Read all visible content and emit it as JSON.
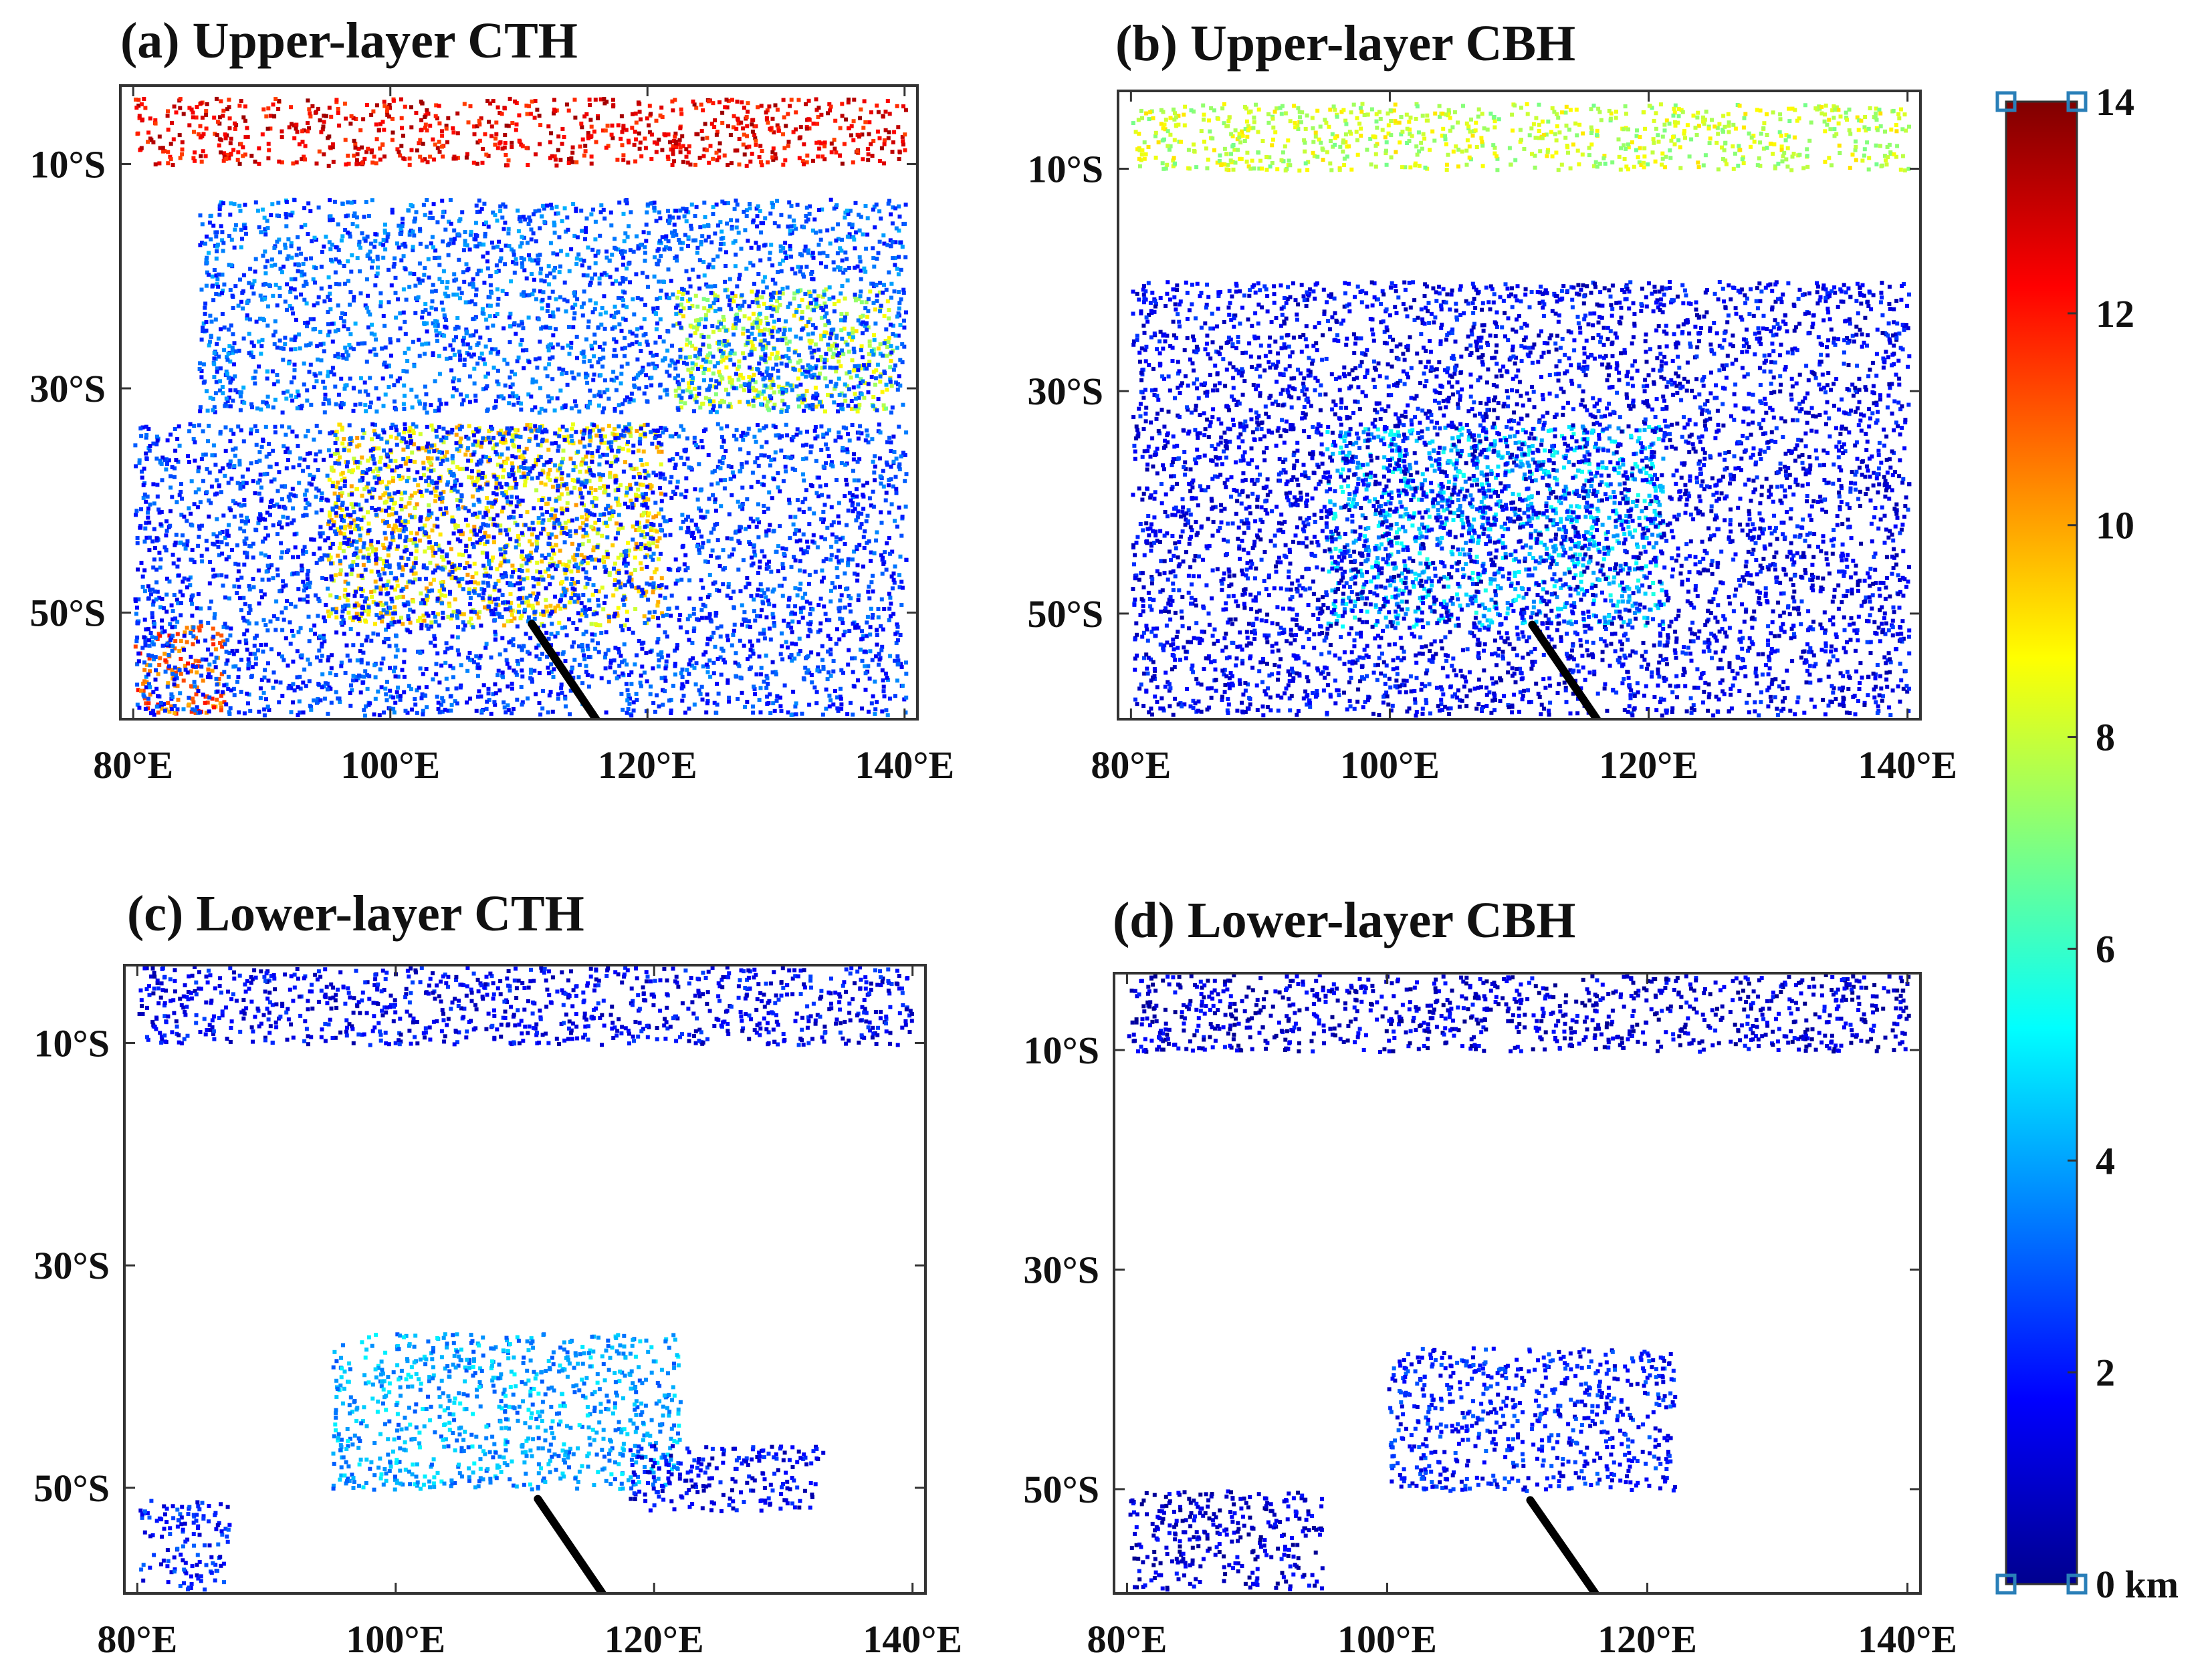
{
  "figure": {
    "panels": [
      {
        "id": "a",
        "title": "(a) Upper-layer CTH"
      },
      {
        "id": "b",
        "title": "(b) Upper-layer CBH"
      },
      {
        "id": "c",
        "title": "(c) Lower-layer CTH"
      },
      {
        "id": "d",
        "title": "(d) Lower-layer CBH"
      }
    ],
    "colorbar": {
      "unit": "km",
      "ticks": [
        "0 km",
        "2",
        "4",
        "6",
        "8",
        "10",
        "12",
        "14"
      ],
      "range": [
        0,
        14
      ],
      "colormap": "jet",
      "colors": [
        "#00008f",
        "#0000ff",
        "#00ffff",
        "#ffff00",
        "#ff0000",
        "#800000"
      ]
    }
  },
  "chart_data": [
    {
      "type": "heatmap",
      "title": "(a) Upper-layer CTH",
      "x_ticks": [
        "80°E",
        "100°E",
        "120°E",
        "140°E"
      ],
      "x_tick_values": [
        80,
        100,
        120,
        140
      ],
      "y_ticks": [
        "10°S",
        "30°S",
        "50°S"
      ],
      "y_tick_values": [
        -10,
        -30,
        -50
      ],
      "xlim": [
        79,
        141
      ],
      "ylim": [
        -59.5,
        -3
      ],
      "track": {
        "lon": [
          111,
          116
        ],
        "lat": [
          -51,
          -59.5
        ]
      },
      "regions": [
        {
          "lon": [
            80,
            140
          ],
          "lat": [
            -4,
            -10
          ],
          "value": 12.5
        },
        {
          "lon": [
            80,
            87
          ],
          "lat": [
            -51,
            -59
          ],
          "value": 11
        },
        {
          "lon": [
            95,
            121
          ],
          "lat": [
            -33,
            -51
          ],
          "value": 9
        },
        {
          "lon": [
            122,
            139
          ],
          "lat": [
            -21,
            -32
          ],
          "value": 8
        },
        {
          "lon": [
            80,
            140
          ],
          "lat": [
            -33,
            -59
          ],
          "value": 2.5
        },
        {
          "lon": [
            85,
            140
          ],
          "lat": [
            -13,
            -32
          ],
          "value": 3
        }
      ],
      "grid": false,
      "legend_position": "right"
    },
    {
      "type": "heatmap",
      "title": "(b) Upper-layer CBH",
      "x_ticks": [
        "80°E",
        "100°E",
        "120°E",
        "140°E"
      ],
      "x_tick_values": [
        80,
        100,
        120,
        140
      ],
      "y_ticks": [
        "10°S",
        "30°S",
        "50°S"
      ],
      "y_tick_values": [
        -10,
        -30,
        -50
      ],
      "xlim": [
        79,
        141
      ],
      "ylim": [
        -59.5,
        -3
      ],
      "track": {
        "lon": [
          111,
          116
        ],
        "lat": [
          -51,
          -59.5
        ]
      },
      "regions": [
        {
          "lon": [
            80,
            140
          ],
          "lat": [
            -4,
            -10
          ],
          "value": 8
        },
        {
          "lon": [
            95,
            121
          ],
          "lat": [
            -33,
            -51
          ],
          "value": 4.5
        },
        {
          "lon": [
            80,
            140
          ],
          "lat": [
            -20,
            -59
          ],
          "value": 1.5
        }
      ],
      "grid": false,
      "legend_position": "right"
    },
    {
      "type": "heatmap",
      "title": "(c) Lower-layer CTH",
      "x_ticks": [
        "80°E",
        "100°E",
        "120°E",
        "140°E"
      ],
      "x_tick_values": [
        80,
        100,
        120,
        140
      ],
      "y_ticks": [
        "10°S",
        "30°S",
        "50°S"
      ],
      "y_tick_values": [
        -10,
        -30,
        -50
      ],
      "xlim": [
        79,
        141
      ],
      "ylim": [
        -59.5,
        -3
      ],
      "track": {
        "lon": [
          111,
          116
        ],
        "lat": [
          -51,
          -59.5
        ]
      },
      "regions": [
        {
          "lon": [
            80,
            140
          ],
          "lat": [
            -3,
            -10
          ],
          "value": 1.5
        },
        {
          "lon": [
            95,
            122
          ],
          "lat": [
            -36,
            -50
          ],
          "value": 4
        },
        {
          "lon": [
            118,
            133
          ],
          "lat": [
            -46,
            -52
          ],
          "value": 1.5
        },
        {
          "lon": [
            80,
            87
          ],
          "lat": [
            -51,
            -59
          ],
          "value": 2
        }
      ],
      "grid": false,
      "legend_position": "right"
    },
    {
      "type": "heatmap",
      "title": "(d) Lower-layer CBH",
      "x_ticks": [
        "80°E",
        "100°E",
        "120°E",
        "140°E"
      ],
      "x_tick_values": [
        80,
        100,
        120,
        140
      ],
      "y_ticks": [
        "10°S",
        "30°S",
        "50°S"
      ],
      "y_tick_values": [
        -10,
        -30,
        -50
      ],
      "xlim": [
        79,
        141
      ],
      "ylim": [
        -59.5,
        -3
      ],
      "track": {
        "lon": [
          111,
          116
        ],
        "lat": [
          -51,
          -59.5
        ]
      },
      "regions": [
        {
          "lon": [
            80,
            140
          ],
          "lat": [
            -3,
            -10
          ],
          "value": 1
        },
        {
          "lon": [
            100,
            122
          ],
          "lat": [
            -37,
            -50
          ],
          "value": 2
        },
        {
          "lon": [
            80,
            95
          ],
          "lat": [
            -50,
            -59
          ],
          "value": 1
        }
      ],
      "grid": false,
      "legend_position": "right"
    }
  ]
}
